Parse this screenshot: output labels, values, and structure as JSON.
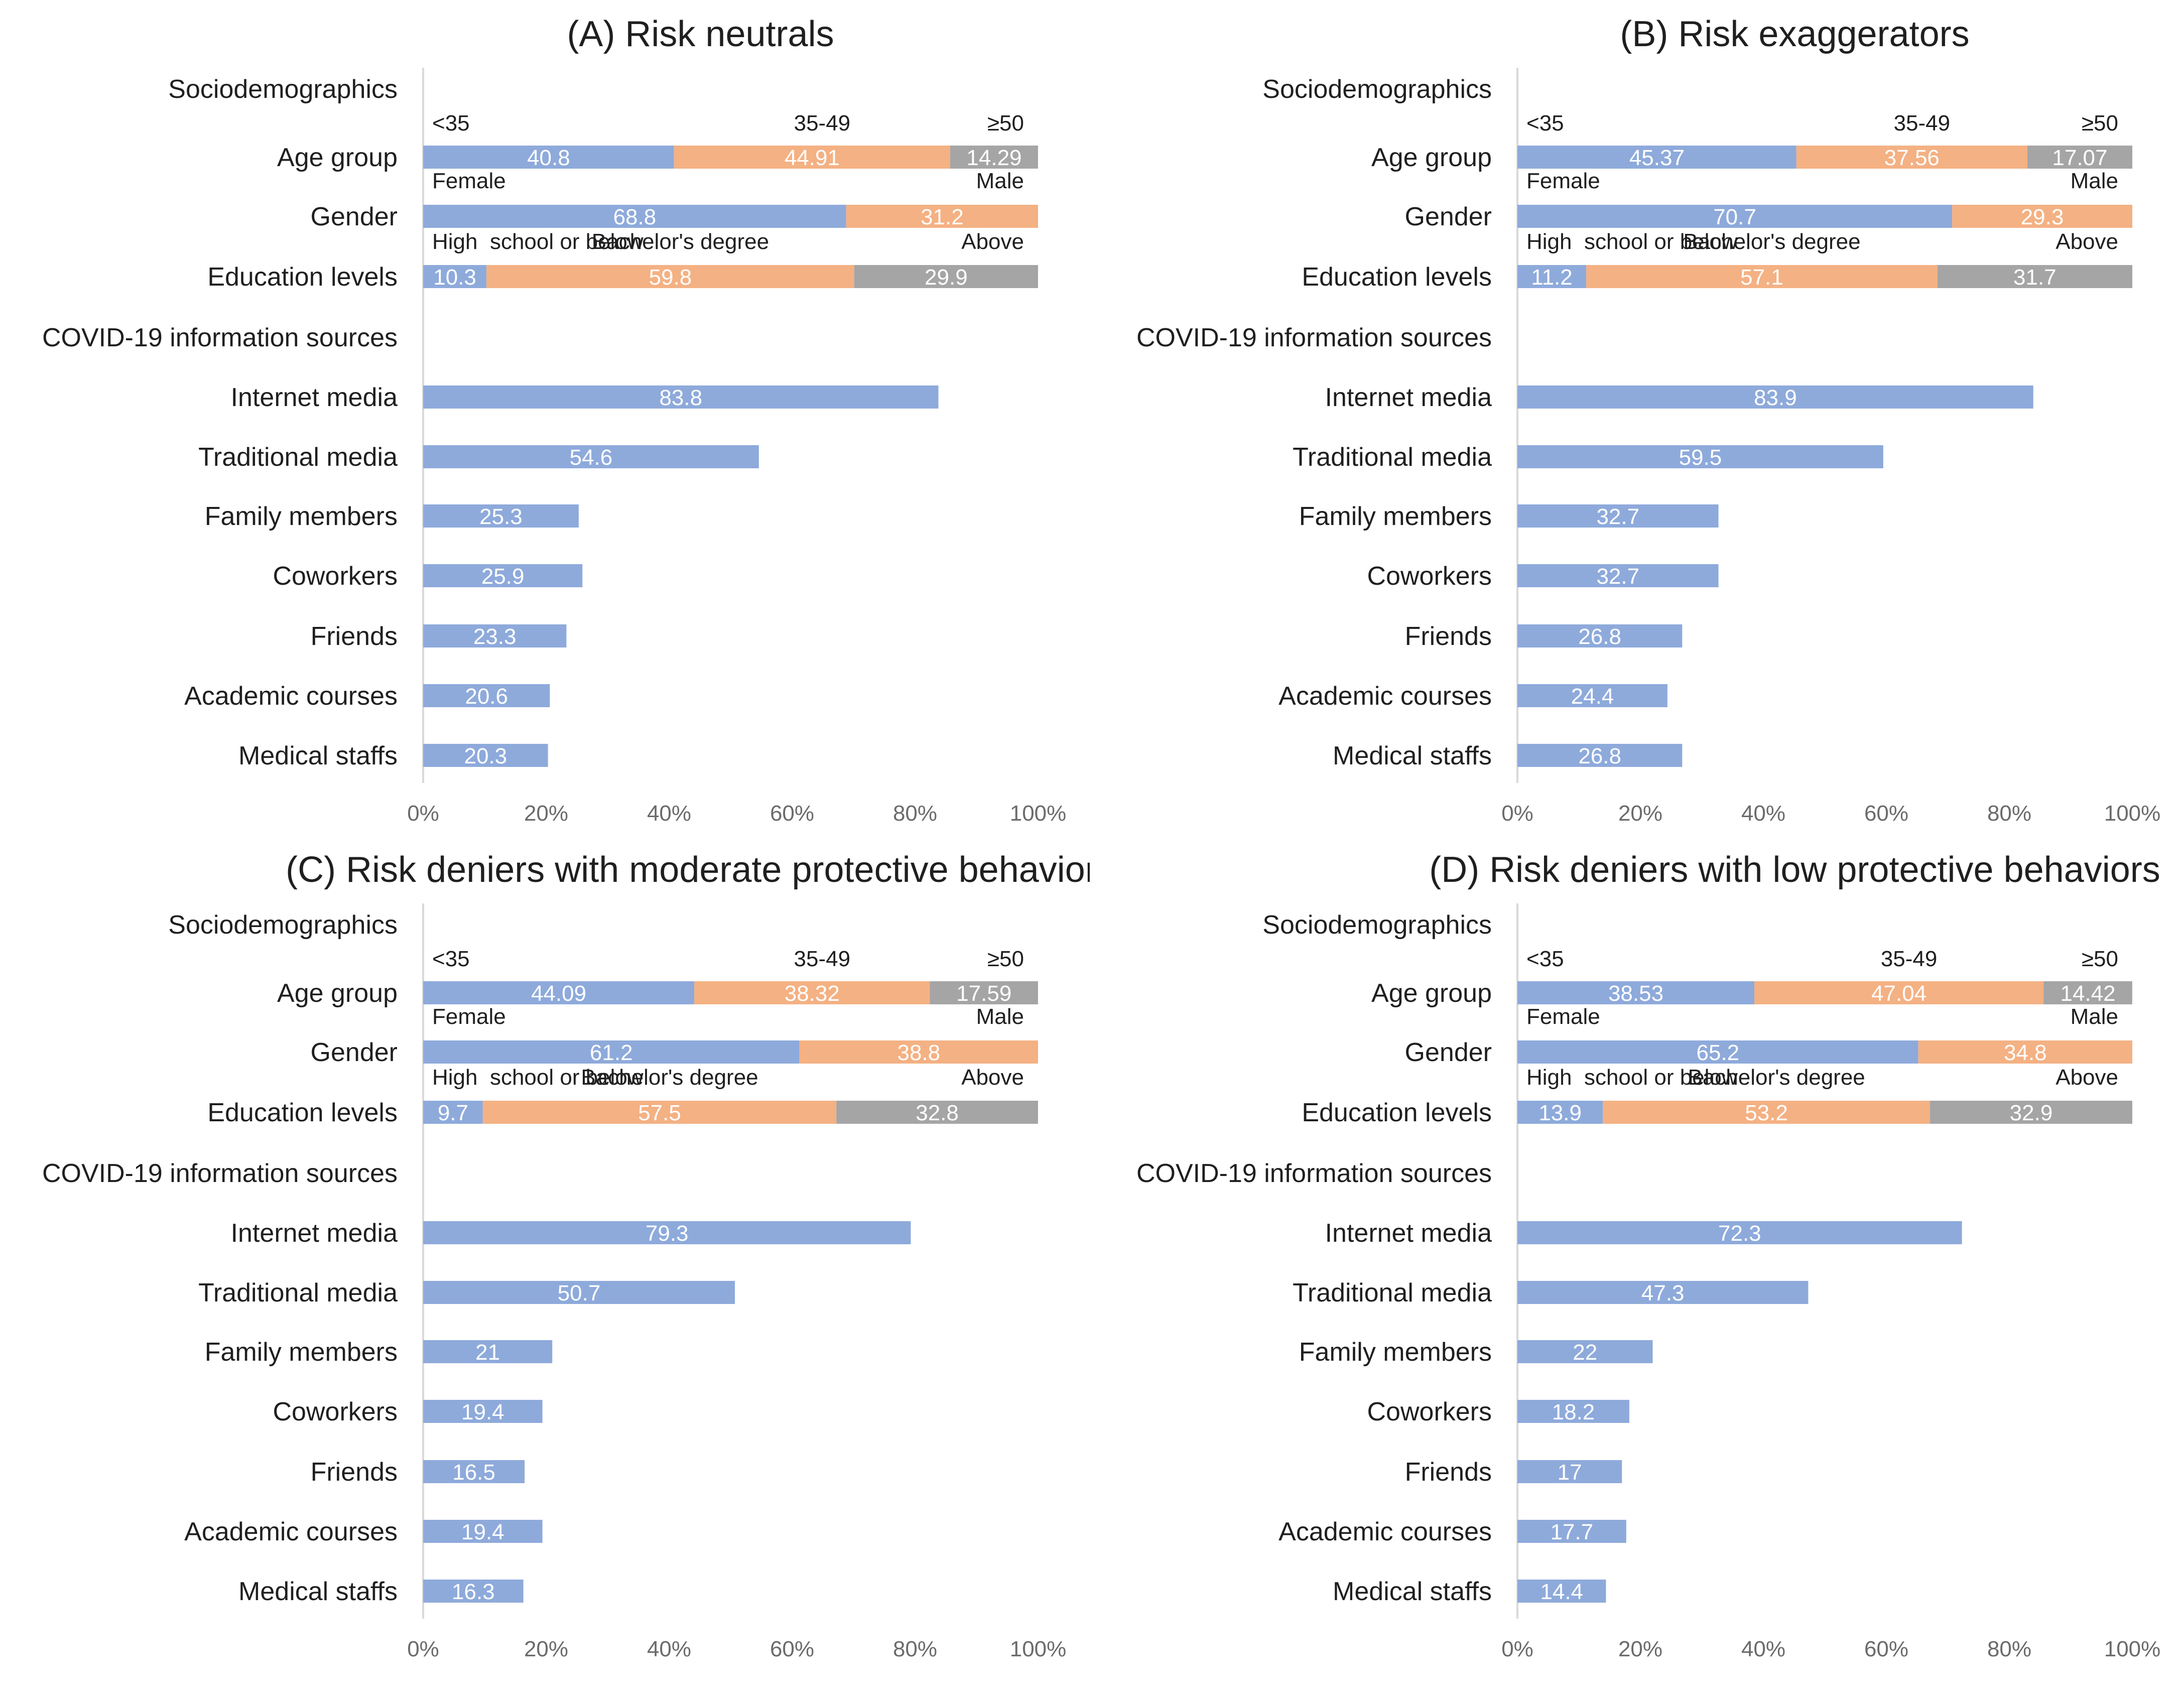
{
  "colors": {
    "blue": "#8eaadb",
    "orange": "#f4b183",
    "gray": "#a5a5a5",
    "axis": "#d9d9d9",
    "text": "#1f1f1f",
    "tick_text": "#6b6b6b"
  },
  "chart_data": [
    {
      "type": "bar",
      "orientation": "horizontal",
      "title": "(A) Risk neutrals",
      "xlim": [
        0,
        100
      ],
      "xticks": [
        "0%",
        "20%",
        "40%",
        "60%",
        "80%",
        "100%"
      ],
      "section_labels": [
        "Sociodemographics",
        "COVID-19 information sources"
      ],
      "stacked": [
        {
          "label": "Age group",
          "segments": [
            {
              "name": "<35",
              "value": 40.8,
              "display": "40.8"
            },
            {
              "name": "35-49",
              "value": 44.91,
              "display": "44.91"
            },
            {
              "name": "≥50",
              "value": 14.29,
              "display": "14.29"
            }
          ]
        },
        {
          "label": "Gender",
          "segments": [
            {
              "name": "Female",
              "value": 68.8,
              "display": "68.8"
            },
            {
              "name": "Male",
              "value": 31.2,
              "display": "31.2"
            }
          ]
        },
        {
          "label": "Education levels",
          "segments": [
            {
              "name": "High  school or below",
              "value": 10.3,
              "display": "10.3"
            },
            {
              "name": "Bachelor's degree",
              "value": 59.8,
              "display": "59.8"
            },
            {
              "name": "Above",
              "value": 29.9,
              "display": "29.9"
            }
          ]
        }
      ],
      "sources": [
        {
          "label": "Internet media",
          "value": 83.8,
          "display": "83.8"
        },
        {
          "label": "Traditional media",
          "value": 54.6,
          "display": "54.6"
        },
        {
          "label": "Family members",
          "value": 25.3,
          "display": "25.3"
        },
        {
          "label": "Coworkers",
          "value": 25.9,
          "display": "25.9"
        },
        {
          "label": "Friends",
          "value": 23.3,
          "display": "23.3"
        },
        {
          "label": "Academic courses",
          "value": 20.6,
          "display": "20.6"
        },
        {
          "label": "Medical staffs",
          "value": 20.3,
          "display": "20.3"
        }
      ]
    },
    {
      "type": "bar",
      "orientation": "horizontal",
      "title": "(B) Risk exaggerators",
      "xlim": [
        0,
        100
      ],
      "xticks": [
        "0%",
        "20%",
        "40%",
        "60%",
        "80%",
        "100%"
      ],
      "section_labels": [
        "Sociodemographics",
        "COVID-19 information sources"
      ],
      "stacked": [
        {
          "label": "Age group",
          "segments": [
            {
              "name": "<35",
              "value": 45.37,
              "display": "45.37"
            },
            {
              "name": "35-49",
              "value": 37.56,
              "display": "37.56"
            },
            {
              "name": "≥50",
              "value": 17.07,
              "display": "17.07"
            }
          ]
        },
        {
          "label": "Gender",
          "segments": [
            {
              "name": "Female",
              "value": 70.7,
              "display": "70.7"
            },
            {
              "name": "Male",
              "value": 29.3,
              "display": "29.3"
            }
          ]
        },
        {
          "label": "Education levels",
          "segments": [
            {
              "name": "High  school or below",
              "value": 11.2,
              "display": "11.2"
            },
            {
              "name": "Bachelor's degree",
              "value": 57.1,
              "display": "57.1"
            },
            {
              "name": "Above",
              "value": 31.7,
              "display": "31.7"
            }
          ]
        }
      ],
      "sources": [
        {
          "label": "Internet media",
          "value": 83.9,
          "display": "83.9"
        },
        {
          "label": "Traditional media",
          "value": 59.5,
          "display": "59.5"
        },
        {
          "label": "Family members",
          "value": 32.7,
          "display": "32.7"
        },
        {
          "label": "Coworkers",
          "value": 32.7,
          "display": "32.7"
        },
        {
          "label": "Friends",
          "value": 26.8,
          "display": "26.8"
        },
        {
          "label": "Academic courses",
          "value": 24.4,
          "display": "24.4"
        },
        {
          "label": "Medical staffs",
          "value": 26.8,
          "display": "26.8"
        }
      ]
    },
    {
      "type": "bar",
      "orientation": "horizontal",
      "title": "(C) Risk deniers with moderate protective behaviors",
      "xlim": [
        0,
        100
      ],
      "xticks": [
        "0%",
        "20%",
        "40%",
        "60%",
        "80%",
        "100%"
      ],
      "section_labels": [
        "Sociodemographics",
        "COVID-19 information sources"
      ],
      "stacked": [
        {
          "label": "Age group",
          "segments": [
            {
              "name": "<35",
              "value": 44.09,
              "display": "44.09"
            },
            {
              "name": "35-49",
              "value": 38.32,
              "display": "38.32"
            },
            {
              "name": "≥50",
              "value": 17.59,
              "display": "17.59"
            }
          ]
        },
        {
          "label": "Gender",
          "segments": [
            {
              "name": "Female",
              "value": 61.2,
              "display": "61.2"
            },
            {
              "name": "Male",
              "value": 38.8,
              "display": "38.8"
            }
          ]
        },
        {
          "label": "Education levels",
          "segments": [
            {
              "name": "High  school or below",
              "value": 9.7,
              "display": "9.7"
            },
            {
              "name": "Bachelor's degree",
              "value": 57.5,
              "display": "57.5"
            },
            {
              "name": "Above",
              "value": 32.8,
              "display": "32.8"
            }
          ]
        }
      ],
      "sources": [
        {
          "label": "Internet media",
          "value": 79.3,
          "display": "79.3"
        },
        {
          "label": "Traditional media",
          "value": 50.7,
          "display": "50.7"
        },
        {
          "label": "Family members",
          "value": 21,
          "display": "21"
        },
        {
          "label": "Coworkers",
          "value": 19.4,
          "display": "19.4"
        },
        {
          "label": "Friends",
          "value": 16.5,
          "display": "16.5"
        },
        {
          "label": "Academic courses",
          "value": 19.4,
          "display": "19.4"
        },
        {
          "label": "Medical staffs",
          "value": 16.3,
          "display": "16.3"
        }
      ]
    },
    {
      "type": "bar",
      "orientation": "horizontal",
      "title": "(D) Risk deniers with low protective behaviors",
      "xlim": [
        0,
        100
      ],
      "xticks": [
        "0%",
        "20%",
        "40%",
        "60%",
        "80%",
        "100%"
      ],
      "section_labels": [
        "Sociodemographics",
        "COVID-19 information sources"
      ],
      "stacked": [
        {
          "label": "Age group",
          "segments": [
            {
              "name": "<35",
              "value": 38.53,
              "display": "38.53"
            },
            {
              "name": "35-49",
              "value": 47.04,
              "display": "47.04"
            },
            {
              "name": "≥50",
              "value": 14.42,
              "display": "14.42"
            }
          ]
        },
        {
          "label": "Gender",
          "segments": [
            {
              "name": "Female",
              "value": 65.2,
              "display": "65.2"
            },
            {
              "name": "Male",
              "value": 34.8,
              "display": "34.8"
            }
          ]
        },
        {
          "label": "Education levels",
          "segments": [
            {
              "name": "High  school or below",
              "value": 13.9,
              "display": "13.9"
            },
            {
              "name": "Bachelor's degree",
              "value": 53.2,
              "display": "53.2"
            },
            {
              "name": "Above",
              "value": 32.9,
              "display": "32.9"
            }
          ]
        }
      ],
      "sources": [
        {
          "label": "Internet media",
          "value": 72.3,
          "display": "72.3"
        },
        {
          "label": "Traditional media",
          "value": 47.3,
          "display": "47.3"
        },
        {
          "label": "Family members",
          "value": 22,
          "display": "22"
        },
        {
          "label": "Coworkers",
          "value": 18.2,
          "display": "18.2"
        },
        {
          "label": "Friends",
          "value": 17,
          "display": "17"
        },
        {
          "label": "Academic courses",
          "value": 17.7,
          "display": "17.7"
        },
        {
          "label": "Medical staffs",
          "value": 14.4,
          "display": "14.4"
        }
      ]
    }
  ]
}
